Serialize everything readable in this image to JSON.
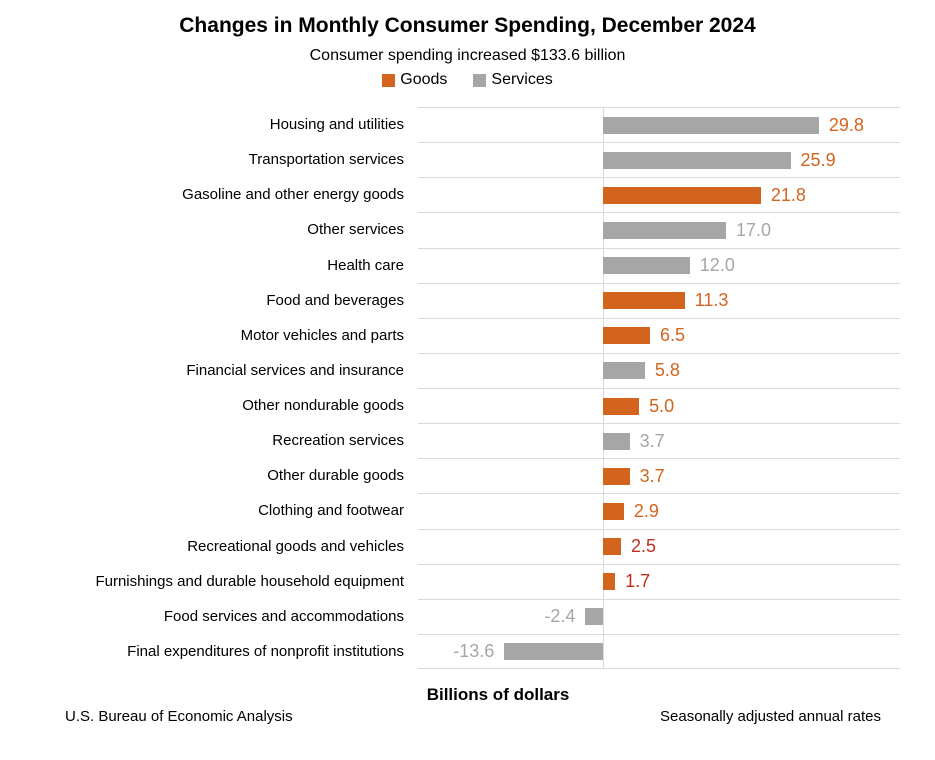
{
  "header": {
    "title": "Changes in Monthly Consumer Spending, December 2024",
    "subtitle": "Consumer spending increased $133.6 billion"
  },
  "legend": {
    "items": [
      {
        "label": "Goods",
        "color_key": "goods"
      },
      {
        "label": "Services",
        "color_key": "services"
      }
    ]
  },
  "footer": {
    "xlabel": "Billions of dollars",
    "source": "U.S. Bureau of Economic Analysis",
    "note": "Seasonally adjusted annual rates"
  },
  "colors": {
    "goods": "#D2641E",
    "services": "#A6A6A6",
    "darkred": "#BE2D1E",
    "gridline": "#D9D9D9"
  },
  "chart_data": {
    "type": "bar",
    "orientation": "horizontal",
    "title": "Changes in Monthly Consumer Spending, December 2024",
    "subtitle": "Consumer spending increased $133.6 billion",
    "xlabel": "Billions of dollars",
    "xlim": [
      -25.5,
      41.0
    ],
    "grid": "horizontal-row-separators-and-zero-line",
    "legend_position": "top-center",
    "series_names": [
      "Goods",
      "Services"
    ],
    "rows": [
      {
        "category": "Housing and utilities",
        "value": 29.8,
        "series": "Services",
        "value_label": "29.8",
        "value_label_color": "goods"
      },
      {
        "category": "Transportation services",
        "value": 25.9,
        "series": "Services",
        "value_label": "25.9",
        "value_label_color": "goods"
      },
      {
        "category": "Gasoline and other energy goods",
        "value": 21.8,
        "series": "Goods",
        "value_label": "21.8",
        "value_label_color": "goods"
      },
      {
        "category": "Other services",
        "value": 17.0,
        "series": "Services",
        "value_label": "17.0",
        "value_label_color": "services"
      },
      {
        "category": "Health care",
        "value": 12.0,
        "series": "Services",
        "value_label": "12.0",
        "value_label_color": "services"
      },
      {
        "category": "Food and beverages",
        "value": 11.3,
        "series": "Goods",
        "value_label": "11.3",
        "value_label_color": "goods"
      },
      {
        "category": "Motor vehicles and parts",
        "value": 6.5,
        "series": "Goods",
        "value_label": "6.5",
        "value_label_color": "goods"
      },
      {
        "category": "Financial services and insurance",
        "value": 5.8,
        "series": "Services",
        "value_label": "5.8",
        "value_label_color": "goods"
      },
      {
        "category": "Other nondurable goods",
        "value": 5.0,
        "series": "Goods",
        "value_label": "5.0",
        "value_label_color": "goods"
      },
      {
        "category": "Recreation services",
        "value": 3.7,
        "series": "Services",
        "value_label": "3.7",
        "value_label_color": "services"
      },
      {
        "category": "Other durable goods",
        "value": 3.7,
        "series": "Goods",
        "value_label": "3.7",
        "value_label_color": "goods"
      },
      {
        "category": "Clothing and footwear",
        "value": 2.9,
        "series": "Goods",
        "value_label": "2.9",
        "value_label_color": "goods"
      },
      {
        "category": "Recreational goods and vehicles",
        "value": 2.5,
        "series": "Goods",
        "value_label": "2.5",
        "value_label_color": "darkred"
      },
      {
        "category": "Furnishings and durable household equipment",
        "value": 1.7,
        "series": "Goods",
        "value_label": "1.7",
        "value_label_color": "darkred"
      },
      {
        "category": "Food services and accommodations",
        "value": -2.4,
        "series": "Services",
        "value_label": "-2.4",
        "value_label_color": "services"
      },
      {
        "category": "Final expenditures of nonprofit institutions",
        "value": -13.6,
        "series": "Services",
        "value_label": "-13.6",
        "value_label_color": "services"
      }
    ]
  }
}
